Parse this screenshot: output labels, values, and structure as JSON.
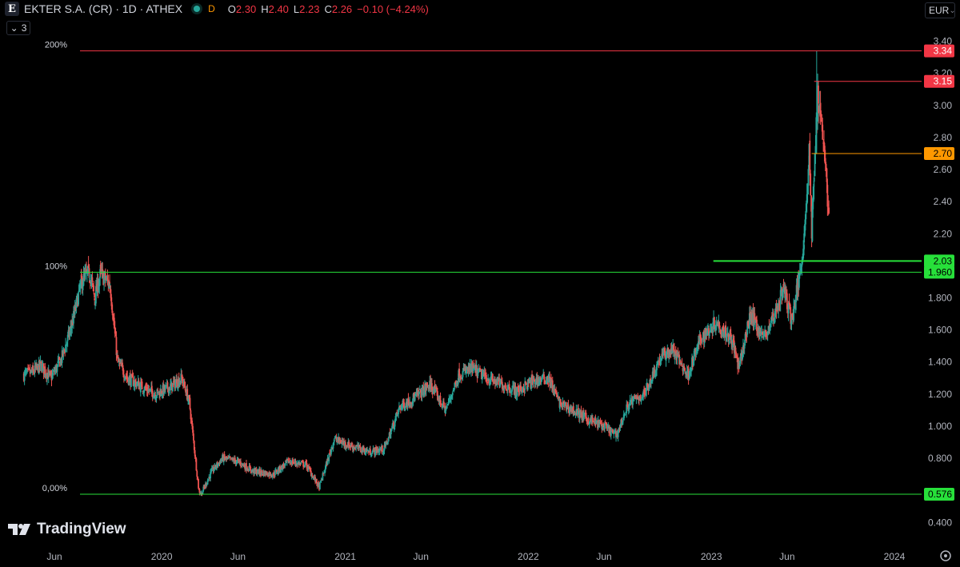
{
  "header": {
    "title": "EKTER S.A. (CR) · 1D · ATHEX",
    "badge": "D",
    "ohlc": [
      {
        "label": "O",
        "value": "2.30"
      },
      {
        "label": "H",
        "value": "2.40"
      },
      {
        "label": "L",
        "value": "2.23"
      },
      {
        "label": "C",
        "value": "2.26"
      }
    ],
    "change": "−0.10 (−4.24%)",
    "indicator_count": "3",
    "currency": "EUR"
  },
  "brand": "TradingView",
  "colors": {
    "background": "#000000",
    "up": "#26a69a",
    "down": "#ef5350",
    "fib_green": "#27e03a",
    "level_red": "#f23645",
    "level_orange": "#ff9800"
  },
  "chart_data": {
    "type": "candlestick",
    "ylim": [
      0.3,
      3.45
    ],
    "y_ticks": [
      "3.40",
      "3.20",
      "3.00",
      "2.80",
      "2.60",
      "2.40",
      "2.20",
      "1.800",
      "1.600",
      "1.400",
      "1.200",
      "1.000",
      "0.800",
      "0.400"
    ],
    "y_tick_values": [
      3.4,
      3.2,
      3.0,
      2.8,
      2.6,
      2.4,
      2.2,
      1.8,
      1.6,
      1.4,
      1.2,
      1.0,
      0.8,
      0.4
    ],
    "x_ticks": [
      "Jun",
      "2020",
      "Jun",
      "2021",
      "Jun",
      "2022",
      "Jun",
      "2023",
      "Jun",
      "2024"
    ],
    "x_tick_dates": [
      "2019-06-01",
      "2020-01-01",
      "2020-06-01",
      "2021-01-01",
      "2021-06-01",
      "2022-01-01",
      "2022-06-01",
      "2023-01-01",
      "2023-06-01",
      "2024-01-01"
    ],
    "x_range": [
      "2019-04-01",
      "2024-03-01"
    ],
    "price_path": [
      [
        "2019-04-01",
        1.32
      ],
      [
        "2019-04-20",
        1.34
      ],
      [
        "2019-05-05",
        1.38
      ],
      [
        "2019-05-25",
        1.3
      ],
      [
        "2019-06-15",
        1.42
      ],
      [
        "2019-07-05",
        1.62
      ],
      [
        "2019-07-25",
        1.9
      ],
      [
        "2019-08-10",
        1.96
      ],
      [
        "2019-08-20",
        1.8
      ],
      [
        "2019-09-01",
        1.95
      ],
      [
        "2019-09-20",
        1.88
      ],
      [
        "2019-10-05",
        1.4
      ],
      [
        "2019-10-25",
        1.3
      ],
      [
        "2019-11-20",
        1.25
      ],
      [
        "2019-12-20",
        1.2
      ],
      [
        "2020-01-20",
        1.25
      ],
      [
        "2020-02-10",
        1.3
      ],
      [
        "2020-02-25",
        1.15
      ],
      [
        "2020-03-15",
        0.6
      ],
      [
        "2020-03-20",
        0.58
      ],
      [
        "2020-04-10",
        0.72
      ],
      [
        "2020-05-01",
        0.8
      ],
      [
        "2020-06-01",
        0.78
      ],
      [
        "2020-07-01",
        0.72
      ],
      [
        "2020-08-10",
        0.7
      ],
      [
        "2020-09-10",
        0.78
      ],
      [
        "2020-10-15",
        0.76
      ],
      [
        "2020-11-10",
        0.62
      ],
      [
        "2020-12-10",
        0.92
      ],
      [
        "2021-01-10",
        0.88
      ],
      [
        "2021-02-20",
        0.84
      ],
      [
        "2021-03-20",
        0.86
      ],
      [
        "2021-04-20",
        1.12
      ],
      [
        "2021-05-20",
        1.18
      ],
      [
        "2021-06-20",
        1.26
      ],
      [
        "2021-07-20",
        1.1
      ],
      [
        "2021-08-15",
        1.32
      ],
      [
        "2021-09-10",
        1.36
      ],
      [
        "2021-10-10",
        1.3
      ],
      [
        "2021-11-10",
        1.26
      ],
      [
        "2021-12-10",
        1.22
      ],
      [
        "2022-01-10",
        1.28
      ],
      [
        "2022-02-10",
        1.3
      ],
      [
        "2022-03-05",
        1.14
      ],
      [
        "2022-04-01",
        1.1
      ],
      [
        "2022-05-01",
        1.04
      ],
      [
        "2022-06-01",
        1.0
      ],
      [
        "2022-06-25",
        0.94
      ],
      [
        "2022-07-20",
        1.14
      ],
      [
        "2022-08-20",
        1.2
      ],
      [
        "2022-09-20",
        1.42
      ],
      [
        "2022-10-15",
        1.48
      ],
      [
        "2022-11-15",
        1.32
      ],
      [
        "2022-12-10",
        1.54
      ],
      [
        "2023-01-10",
        1.65
      ],
      [
        "2023-02-10",
        1.55
      ],
      [
        "2023-02-25",
        1.36
      ],
      [
        "2023-03-20",
        1.7
      ],
      [
        "2023-04-15",
        1.55
      ],
      [
        "2023-05-05",
        1.68
      ],
      [
        "2023-05-25",
        1.86
      ],
      [
        "2023-06-10",
        1.66
      ],
      [
        "2023-06-25",
        1.92
      ],
      [
        "2023-07-05",
        2.18
      ],
      [
        "2023-07-15",
        2.7
      ],
      [
        "2023-07-20",
        2.22
      ],
      [
        "2023-07-25",
        2.55
      ],
      [
        "2023-08-01",
        3.1
      ],
      [
        "2023-08-08",
        2.92
      ],
      [
        "2023-08-15",
        2.7
      ],
      [
        "2023-08-22",
        2.36
      ],
      [
        "2023-08-24",
        2.26
      ]
    ],
    "levels": [
      {
        "price": 3.34,
        "label": "3.34",
        "color": "#f23645",
        "start": "2019-05-20",
        "fib_label": "200%"
      },
      {
        "price": 3.15,
        "label": "3.15",
        "color": "#f23645",
        "start": "2023-07-25",
        "fib_label": ""
      },
      {
        "price": 2.7,
        "label": "2.70",
        "color": "#ff9800",
        "start": "2023-07-20",
        "fib_label": ""
      },
      {
        "price": 2.03,
        "label": "2.03",
        "color": "#27e03a",
        "start": "2023-01-05",
        "fib_label": ""
      },
      {
        "price": 1.96,
        "label": "1.960",
        "color": "#27e03a",
        "start": "2019-05-20",
        "fib_label": "100%"
      },
      {
        "price": 0.576,
        "label": "0.576",
        "color": "#27e03a",
        "start": "2019-05-20",
        "fib_label": "0,00%"
      }
    ]
  }
}
